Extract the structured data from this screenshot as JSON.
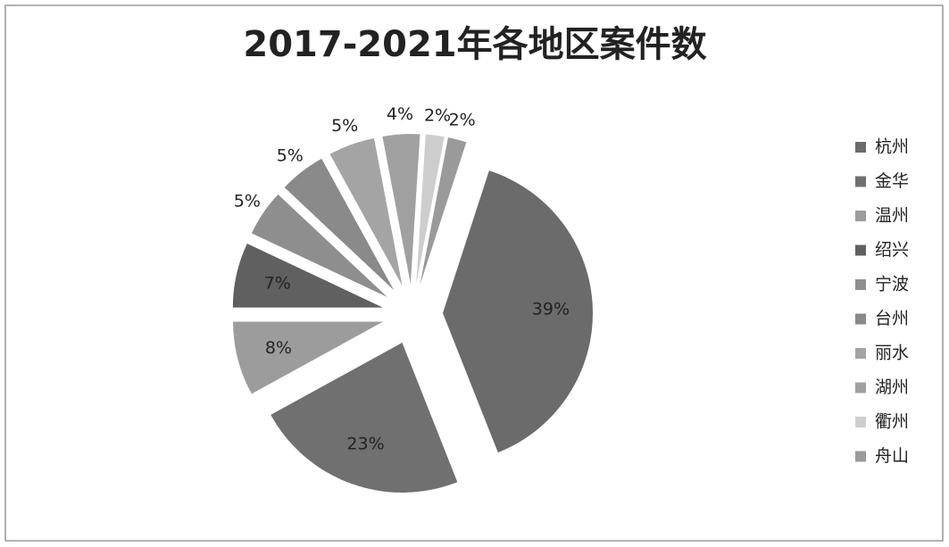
{
  "chart_data": {
    "type": "pie",
    "title": "2017-2021年各地区案件数",
    "categories": [
      "杭州",
      "金华",
      "温州",
      "绍兴",
      "宁波",
      "台州",
      "丽水",
      "湖州",
      "衢州",
      "舟山"
    ],
    "values": [
      39,
      23,
      8,
      7,
      5,
      5,
      5,
      4,
      2,
      2
    ],
    "value_labels": [
      "39%",
      "23%",
      "8%",
      "7%",
      "5%",
      "5%",
      "5%",
      "4%",
      "2%",
      "2%"
    ],
    "colors": [
      "#6b6b6b",
      "#707070",
      "#9c9c9c",
      "#606060",
      "#8e8e8e",
      "#8a8a8a",
      "#a4a4a4",
      "#a0a0a0",
      "#cdcdcd",
      "#9a9a9a"
    ],
    "legend": "right"
  }
}
